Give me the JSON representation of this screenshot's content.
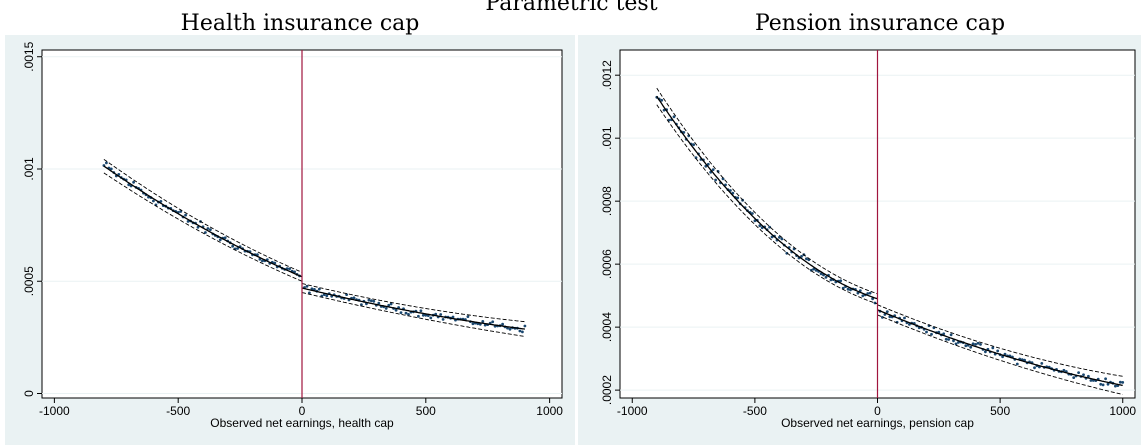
{
  "suptitle": "Parametric test",
  "colors": {
    "panel_bg": "#eaf2f3",
    "plot_bg": "#ffffff",
    "grid": "#eaf2f3",
    "cutoff_line": "#a0153e",
    "points": "#1a476f",
    "fit": "#000000"
  },
  "chart_data": [
    {
      "type": "scatter",
      "title": "Health insurance cap",
      "xlabel": "Observed net earnings, health cap",
      "ylabel": "",
      "xlim": [
        -1050,
        1050
      ],
      "ylim": [
        -2e-05,
        0.00153
      ],
      "xticks": [
        -1000,
        -500,
        0,
        500,
        1000
      ],
      "xtick_labels": [
        "-1000",
        "-500",
        "0",
        "500",
        "1000"
      ],
      "yticks": [
        0,
        0.0005,
        0.001,
        0.0015
      ],
      "ytick_labels": [
        "0",
        ".0005",
        ".001",
        ".0015"
      ],
      "grid": true,
      "cutoff": 0,
      "x_range": [
        -800,
        900
      ],
      "fit_left": {
        "a": 0.00052,
        "b": -0.00047,
        "c": 2.9e-06,
        "d": 9e-07
      },
      "fit_right": {
        "a": 0.00047,
        "b": -0.000265,
        "c": 3.5e-06,
        "d": 8e-07
      },
      "band": 2e-05,
      "noise": 1.4e-05
    },
    {
      "type": "scatter",
      "title": "Pension insurance cap",
      "xlabel": "Observed net earnings, pension cap",
      "ylabel": "",
      "xlim": [
        -1050,
        1050
      ],
      "ylim": [
        0.000175,
        0.00128
      ],
      "xticks": [
        -1000,
        -500,
        0,
        500,
        1000
      ],
      "xtick_labels": [
        "-1000",
        "-500",
        "0",
        "500",
        "1000"
      ],
      "yticks": [
        0.0002,
        0.0004,
        0.0006,
        0.0008,
        0.001,
        0.0012
      ],
      "ytick_labels": [
        ".0002",
        ".0004",
        ".0006",
        ".0008",
        ".001",
        ".0012"
      ],
      "grid": true,
      "cutoff": 0,
      "x_range": [
        -900,
        1000
      ],
      "fit_left": {
        "a": 0.00049,
        "b": -0.000255,
        "c": 0.00051,
        "d": 9e-07
      },
      "fit_right": {
        "a": 0.000455,
        "b": -0.000325,
        "c": 8.5e-05,
        "d": 8e-07
      },
      "band": 1.6e-05,
      "noise": 1.2e-05
    }
  ]
}
